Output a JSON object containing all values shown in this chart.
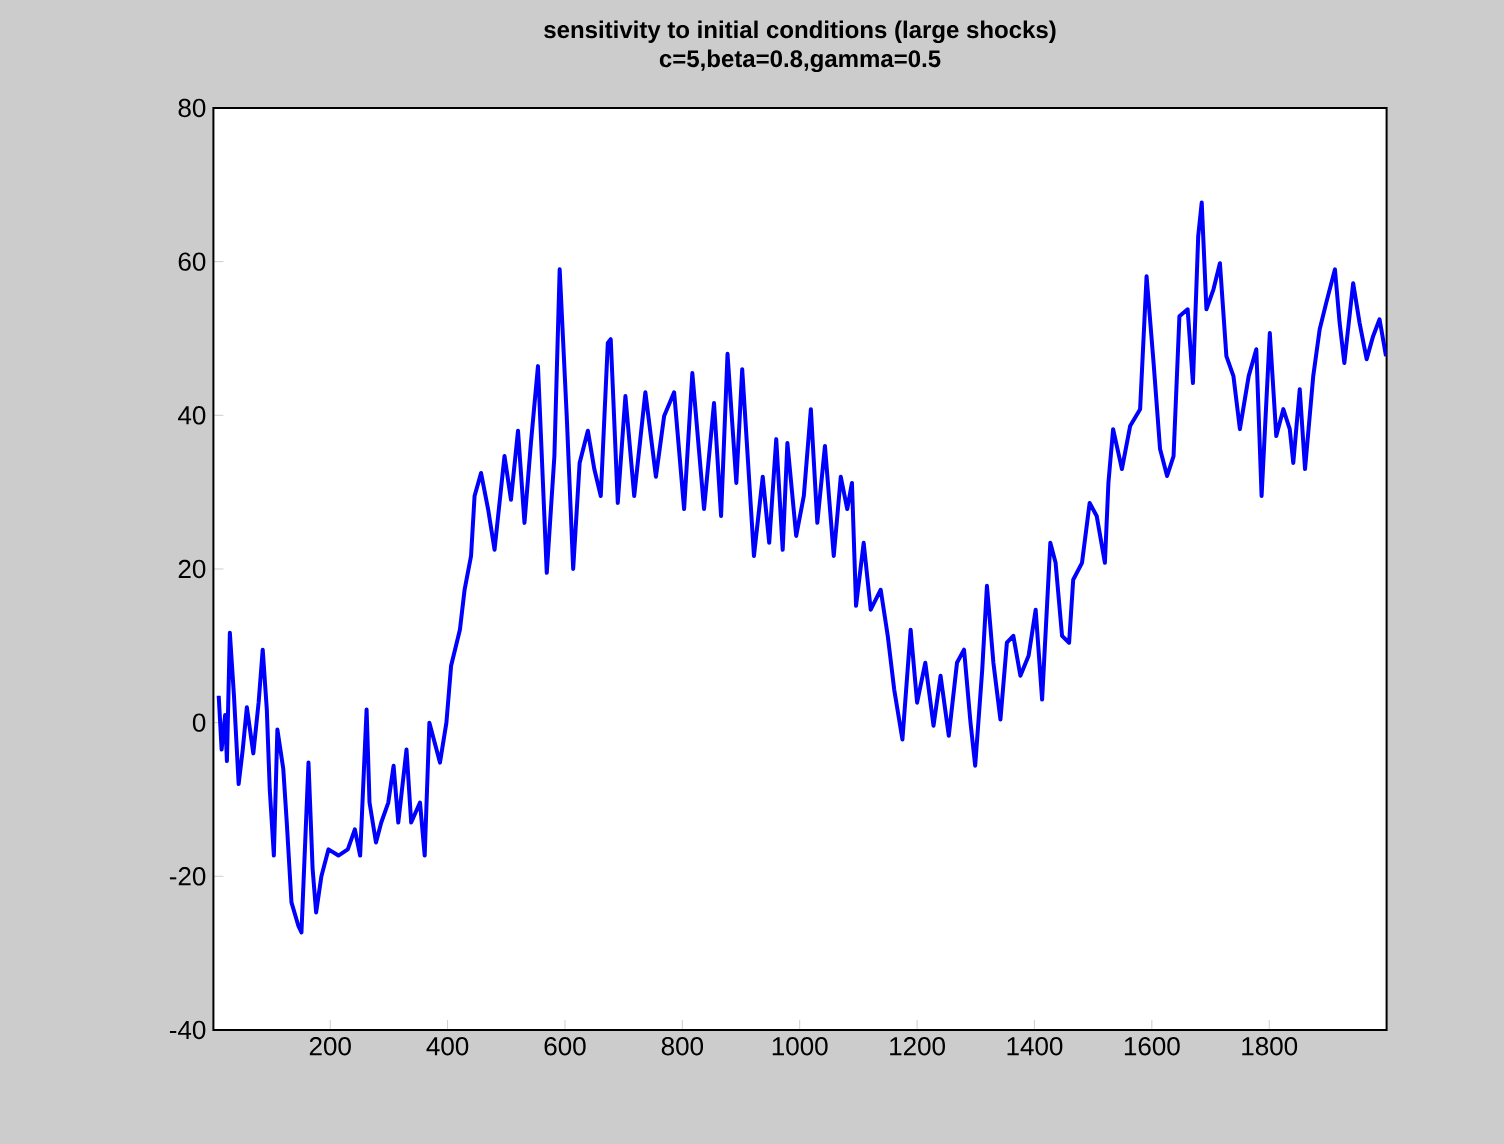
{
  "chart_data": {
    "type": "line",
    "title": "sensitivity to initial conditions (large shocks)",
    "subtitle": "c=5,beta=0.8,gamma=0.5",
    "xlim": [
      1,
      2000
    ],
    "ylim": [
      -40,
      80
    ],
    "xticks": [
      200,
      400,
      600,
      800,
      1000,
      1200,
      1400,
      1600,
      1800
    ],
    "yticks": [
      -40,
      -20,
      0,
      20,
      40,
      60,
      80
    ],
    "marker": "none",
    "line_style": "solid",
    "series": [
      {
        "color": "#0000ff",
        "x": [
          10,
          15,
          21,
          24,
          29,
          36,
          44,
          51,
          58,
          69,
          78,
          85,
          92,
          97,
          104,
          110,
          120,
          126,
          134,
          146,
          151,
          163,
          170,
          176,
          185,
          197,
          214,
          230,
          242,
          251,
          262,
          267,
          278,
          287,
          299,
          308,
          316,
          330,
          338,
          353,
          361,
          369,
          387,
          398,
          406,
          421,
          429,
          440,
          446,
          457,
          469,
          480,
          497,
          508,
          520,
          531,
          542,
          554,
          569,
          582,
          591,
          603,
          614,
          625,
          639,
          650,
          661,
          673,
          678,
          690,
          703,
          718,
          737,
          755,
          769,
          786,
          803,
          817,
          837,
          854,
          866,
          877,
          892,
          902,
          922,
          937,
          948,
          960,
          971,
          979,
          994,
          1007,
          1019,
          1030,
          1043,
          1058,
          1070,
          1081,
          1089,
          1096,
          1109,
          1121,
          1138,
          1150,
          1161,
          1175,
          1189,
          1200,
          1214,
          1228,
          1240,
          1254,
          1268,
          1280,
          1291,
          1299,
          1311,
          1319,
          1330,
          1342,
          1353,
          1364,
          1376,
          1390,
          1402,
          1413,
          1427,
          1436,
          1447,
          1459,
          1466,
          1481,
          1494,
          1506,
          1520,
          1526,
          1534,
          1549,
          1563,
          1580,
          1591,
          1603,
          1614,
          1626,
          1637,
          1647,
          1661,
          1670,
          1679,
          1685,
          1693,
          1705,
          1716,
          1727,
          1739,
          1750,
          1765,
          1778,
          1787,
          1801,
          1812,
          1824,
          1835,
          1841,
          1852,
          1861,
          1875,
          1886,
          1897,
          1912,
          1920,
          1928,
          1943,
          1954,
          1966,
          1977,
          1988,
          1999
        ],
        "values": [
          3.5,
          -3.5,
          1,
          -5,
          11.7,
          3.5,
          -8,
          -3.5,
          2,
          -4,
          2.6,
          9.5,
          1.7,
          -8.7,
          -17.3,
          -0.9,
          -6,
          -13,
          -23.4,
          -26.5,
          -27.3,
          -5.2,
          -19,
          -24.7,
          -20,
          -16.5,
          -17.3,
          -16.5,
          -13.9,
          -17.3,
          1.7,
          -10.4,
          -15.6,
          -13,
          -10.4,
          -5.6,
          -13,
          -3.5,
          -13,
          -10.4,
          -17.3,
          0,
          -5.2,
          0,
          7.4,
          12.1,
          17.3,
          21.7,
          29.5,
          32.5,
          27.8,
          22.5,
          34.7,
          29,
          38,
          26,
          36.4,
          46.4,
          19.5,
          34.7,
          59,
          39.9,
          20,
          33.8,
          38,
          33,
          29.5,
          49.4,
          49.9,
          28.6,
          42.5,
          29.5,
          43,
          32,
          39.9,
          43,
          27.8,
          45.5,
          27.8,
          41.6,
          26.9,
          48,
          31.2,
          46,
          21.7,
          32,
          23.4,
          36.9,
          22.5,
          36.4,
          24.3,
          29.5,
          40.8,
          26,
          36,
          21.7,
          32,
          27.8,
          31.2,
          15.2,
          23.4,
          14.7,
          17.3,
          11.3,
          4.3,
          -2.2,
          12.1,
          2.6,
          7.8,
          -0.4,
          6.1,
          -1.7,
          7.8,
          9.5,
          0,
          -5.6,
          6.9,
          17.8,
          7.8,
          0.4,
          10.4,
          11.3,
          6.1,
          8.7,
          14.7,
          3,
          23.4,
          20.8,
          11.3,
          10.4,
          18.6,
          20.8,
          28.6,
          26.9,
          20.8,
          31.2,
          38.2,
          33,
          38.6,
          40.8,
          58.1,
          46.8,
          35.6,
          32.1,
          34.7,
          52.9,
          53.8,
          44.2,
          63.3,
          67.7,
          53.8,
          56.4,
          59.8,
          47.7,
          45.1,
          38.2,
          45.1,
          48.6,
          29.5,
          50.7,
          37.3,
          40.8,
          38.2,
          33.8,
          43.4,
          33,
          45.1,
          51.2,
          54.6,
          59,
          52,
          46.8,
          57.2,
          52,
          47.3,
          50.3,
          52.5,
          47.7
        ]
      }
    ]
  }
}
